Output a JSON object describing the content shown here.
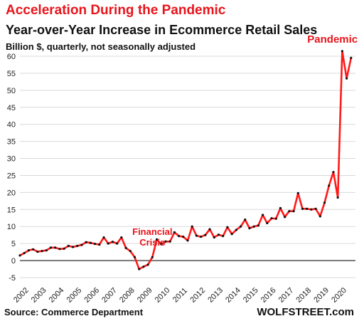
{
  "header": {
    "title": "Acceleration During the Pandemic",
    "subtitle": "Year-over-Year  Increase in Ecommerce Retail Sales",
    "units": "Billion $, quarterly, not seasonally adjusted"
  },
  "footer": {
    "source": "Source: Commerce Department",
    "brand": "WOLFSTREET.com"
  },
  "colors": {
    "line": "#ff1a1a",
    "annotation": "#e8141b",
    "grid": "#d9d9d9",
    "zero_line": "#808080",
    "markers": "#111111"
  },
  "chart_data": {
    "type": "line",
    "title": "",
    "xlabel": "",
    "ylabel": "",
    "ylim": [
      -5,
      60
    ],
    "yticks": [
      -5,
      0,
      5,
      10,
      15,
      20,
      25,
      30,
      35,
      40,
      45,
      50,
      55,
      60
    ],
    "xticks": [
      "2002",
      "2003",
      "2004",
      "2005",
      "2006",
      "2007",
      "2008",
      "2009",
      "2010",
      "2011",
      "2012",
      "2013",
      "2014",
      "2015",
      "2016",
      "2017",
      "2018",
      "2019",
      "2020"
    ],
    "xrange": [
      2002.0,
      2021.0
    ],
    "grid": "horizontal",
    "annotations": [
      {
        "text_lines": [
          "Financial",
          "Crisis"
        ],
        "x": 2009.5,
        "y": 7.5
      },
      {
        "text_lines": [
          "Pandemic"
        ],
        "x": 2019.7,
        "y": 64
      }
    ],
    "series": [
      {
        "x": [
          2002.0,
          2002.25,
          2002.5,
          2002.75,
          2003.0,
          2003.25,
          2003.5,
          2003.75,
          2004.0,
          2004.25,
          2004.5,
          2004.75,
          2005.0,
          2005.25,
          2005.5,
          2005.75,
          2006.0,
          2006.25,
          2006.5,
          2006.75,
          2007.0,
          2007.25,
          2007.5,
          2007.75,
          2008.0,
          2008.25,
          2008.5,
          2008.75,
          2009.0,
          2009.25,
          2009.5,
          2009.75,
          2010.0,
          2010.25,
          2010.5,
          2010.75,
          2011.0,
          2011.25,
          2011.5,
          2011.75,
          2012.0,
          2012.25,
          2012.5,
          2012.75,
          2013.0,
          2013.25,
          2013.5,
          2013.75,
          2014.0,
          2014.25,
          2014.5,
          2014.75,
          2015.0,
          2015.25,
          2015.5,
          2015.75,
          2016.0,
          2016.25,
          2016.5,
          2016.75,
          2017.0,
          2017.25,
          2017.5,
          2017.75,
          2018.0,
          2018.25,
          2018.5,
          2018.75,
          2019.0,
          2019.25,
          2019.5,
          2019.75,
          2020.0,
          2020.25,
          2020.5,
          2020.75
        ],
        "values": [
          1.5,
          2.2,
          3.0,
          3.3,
          2.6,
          2.8,
          3.0,
          3.8,
          3.8,
          3.4,
          3.5,
          4.3,
          4.0,
          4.3,
          4.6,
          5.4,
          5.2,
          4.9,
          4.7,
          6.8,
          5.0,
          5.5,
          5.0,
          6.8,
          3.7,
          2.8,
          1.0,
          -2.5,
          -1.8,
          -1.2,
          1.0,
          6.2,
          4.8,
          5.6,
          5.6,
          8.3,
          7.2,
          7.0,
          5.9,
          10.0,
          7.3,
          7.0,
          7.5,
          9.2,
          6.8,
          7.6,
          7.2,
          9.8,
          7.8,
          9.0,
          10.0,
          12.0,
          9.5,
          10.0,
          10.3,
          13.4,
          11.0,
          12.4,
          12.3,
          15.4,
          12.8,
          14.5,
          14.5,
          19.8,
          15.2,
          15.2,
          15.0,
          15.2,
          13.0,
          17.0,
          22.0,
          26.0,
          18.5,
          61.5,
          53.5,
          59.5
        ]
      }
    ]
  }
}
